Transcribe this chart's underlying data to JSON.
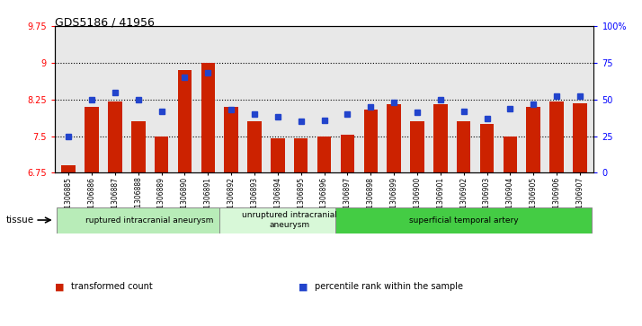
{
  "title": "GDS5186 / 41956",
  "samples": [
    "GSM1306885",
    "GSM1306886",
    "GSM1306887",
    "GSM1306888",
    "GSM1306889",
    "GSM1306890",
    "GSM1306891",
    "GSM1306892",
    "GSM1306893",
    "GSM1306894",
    "GSM1306895",
    "GSM1306896",
    "GSM1306897",
    "GSM1306898",
    "GSM1306899",
    "GSM1306900",
    "GSM1306901",
    "GSM1306902",
    "GSM1306903",
    "GSM1306904",
    "GSM1306905",
    "GSM1306906",
    "GSM1306907"
  ],
  "bar_values": [
    6.9,
    8.1,
    8.2,
    7.8,
    7.5,
    8.85,
    9.0,
    8.1,
    7.8,
    7.45,
    7.45,
    7.5,
    7.52,
    8.05,
    8.15,
    7.8,
    8.15,
    7.8,
    7.75,
    7.5,
    8.1,
    8.2,
    8.18
  ],
  "percentile_values": [
    25,
    50,
    55,
    50,
    42,
    65,
    68,
    43,
    40,
    38,
    35,
    36,
    40,
    45,
    48,
    41,
    50,
    42,
    37,
    44,
    47,
    52,
    52
  ],
  "groups": [
    {
      "label": "ruptured intracranial aneurysm",
      "start": 0,
      "end": 7,
      "color": "#b8ecb8"
    },
    {
      "label": "unruptured intracranial\naneurysm",
      "start": 7,
      "end": 12,
      "color": "#d8f8d8"
    },
    {
      "label": "superficial temporal artery",
      "start": 12,
      "end": 22,
      "color": "#44cc44"
    }
  ],
  "ylim_left": [
    6.75,
    9.75
  ],
  "ylim_right": [
    0,
    100
  ],
  "yticks_left": [
    6.75,
    7.5,
    8.25,
    9.0,
    9.75
  ],
  "yticks_right": [
    0,
    25,
    50,
    75,
    100
  ],
  "ytick_labels_left": [
    "6.75",
    "7.5",
    "8.25",
    "9",
    "9.75"
  ],
  "ytick_labels_right": [
    "0",
    "25",
    "50",
    "75",
    "100%"
  ],
  "hlines": [
    7.5,
    8.25,
    9.0
  ],
  "bar_color": "#cc2200",
  "dot_color": "#2244cc",
  "bar_width": 0.6,
  "legend_items": [
    {
      "label": "transformed count",
      "color": "#cc2200"
    },
    {
      "label": "percentile rank within the sample",
      "color": "#2244cc"
    }
  ],
  "tissue_label": "tissue",
  "background_color": "#ffffff",
  "plot_bg_color": "#e8e8e8"
}
